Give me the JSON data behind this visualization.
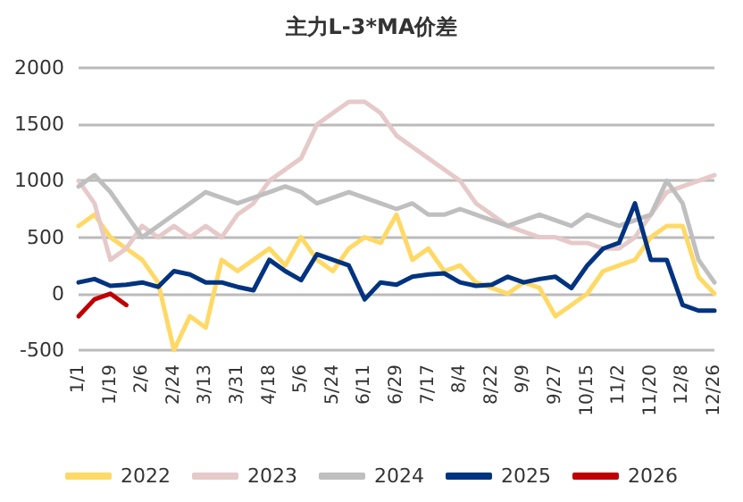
{
  "chart_data": {
    "type": "line",
    "title": "主力L-3*MA价差",
    "categories": [
      "1/1",
      null,
      "1/19",
      null,
      "2/6",
      null,
      "2/24",
      null,
      "3/13",
      null,
      "3/31",
      null,
      "4/18",
      null,
      "5/6",
      null,
      "5/24",
      null,
      "6/11",
      null,
      "6/29",
      null,
      "7/17",
      null,
      "8/4",
      null,
      "8/22",
      null,
      "9/9",
      null,
      "9/27",
      null,
      "10/15",
      null,
      "11/2",
      null,
      "11/20",
      null,
      "12/8",
      null,
      "12/26"
    ],
    "ylim": [
      -500,
      2000
    ],
    "yticks": [
      -500,
      0,
      500,
      1000,
      1500,
      2000
    ],
    "grid": "y",
    "legend": "bottom",
    "marker": "none",
    "line_style": "solid",
    "series": [
      {
        "name": "2022",
        "color": "#ffd966",
        "values": [
          600,
          700,
          500,
          400,
          300,
          100,
          -500,
          -200,
          -300,
          300,
          200,
          300,
          400,
          250,
          500,
          300,
          200,
          400,
          500,
          450,
          700,
          300,
          400,
          200,
          250,
          100,
          50,
          0,
          100,
          50,
          -200,
          -100,
          0,
          200,
          250,
          300,
          500,
          600,
          600,
          150,
          0
        ]
      },
      {
        "name": "2023",
        "color": "#e6c9c9",
        "values": [
          1000,
          800,
          300,
          400,
          600,
          500,
          600,
          500,
          600,
          500,
          700,
          800,
          1000,
          1100,
          1200,
          1500,
          1600,
          1700,
          1700,
          1600,
          1400,
          1300,
          1200,
          1100,
          1000,
          800,
          700,
          600,
          550,
          500,
          500,
          450,
          450,
          400,
          400,
          500,
          700,
          900,
          950,
          1000,
          1050
        ]
      },
      {
        "name": "2024",
        "color": "#bfbfbf",
        "values": [
          950,
          1050,
          900,
          700,
          500,
          600,
          700,
          800,
          900,
          850,
          800,
          850,
          900,
          950,
          900,
          800,
          850,
          900,
          850,
          800,
          750,
          800,
          700,
          700,
          750,
          700,
          650,
          600,
          650,
          700,
          650,
          600,
          700,
          650,
          600,
          650,
          700,
          1000,
          800,
          300,
          100
        ]
      },
      {
        "name": "2025",
        "color": "#003380",
        "values": [
          100,
          130,
          70,
          80,
          100,
          60,
          200,
          170,
          100,
          100,
          60,
          30,
          300,
          200,
          120,
          350,
          300,
          250,
          -50,
          100,
          80,
          150,
          170,
          180,
          100,
          70,
          80,
          150,
          100,
          130,
          150,
          50,
          250,
          400,
          450,
          800,
          300,
          300,
          -100,
          -150,
          -150
        ]
      },
      {
        "name": "2026",
        "color": "#c00000",
        "values": [
          -200,
          -50,
          0,
          -100,
          null,
          null,
          null,
          null,
          null,
          null,
          null,
          null,
          null,
          null,
          null,
          null,
          null,
          null,
          null,
          null,
          null,
          null,
          null,
          null,
          null,
          null,
          null,
          null,
          null,
          null,
          null,
          null,
          null,
          null,
          null,
          null,
          null,
          null,
          null,
          null,
          null
        ]
      }
    ]
  }
}
